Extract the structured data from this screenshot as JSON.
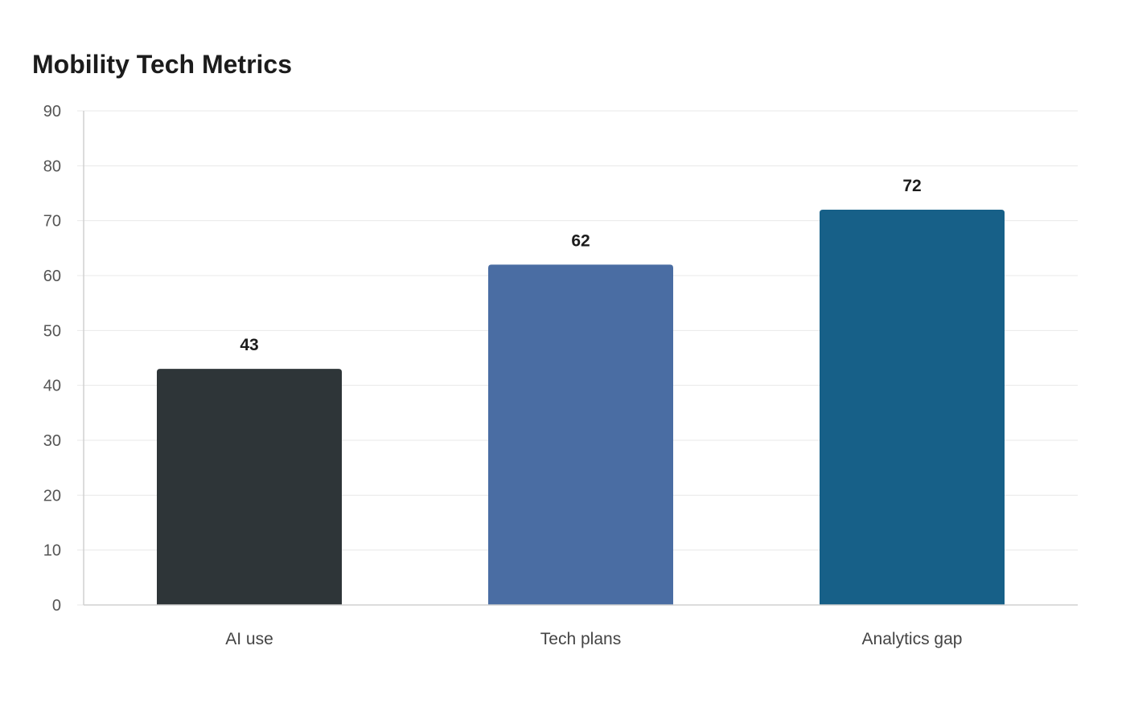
{
  "chart_data": {
    "type": "bar",
    "title": "Mobility Tech Metrics",
    "xlabel": "",
    "ylabel": "",
    "categories": [
      "AI use",
      "Tech plans",
      "Analytics gap"
    ],
    "values": [
      43,
      62,
      72
    ],
    "colors": [
      "#2e3538",
      "#4a6da3",
      "#176088"
    ],
    "ylim": [
      0,
      90
    ],
    "yticks": [
      0,
      10,
      20,
      30,
      40,
      50,
      60,
      70,
      80,
      90
    ],
    "grid": true,
    "data_labels": true
  }
}
